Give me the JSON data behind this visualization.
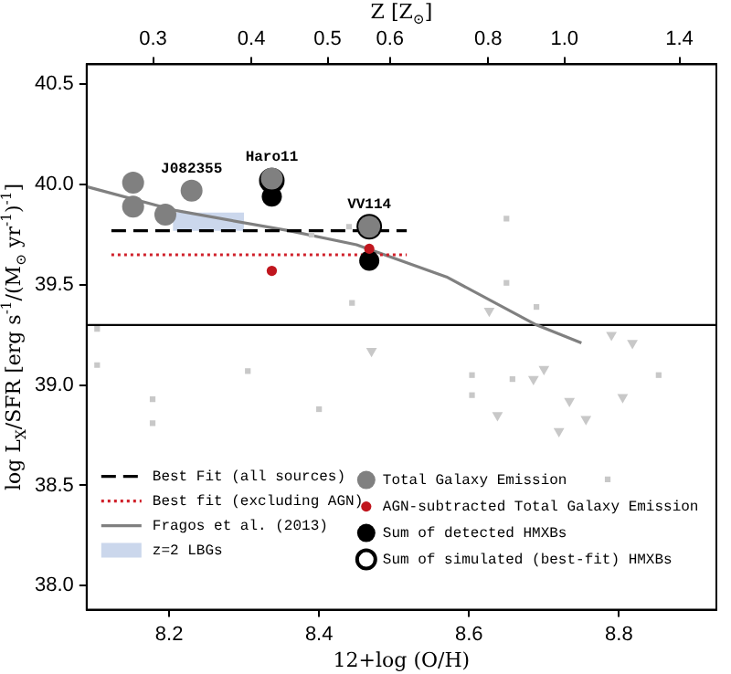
{
  "chart_data": {
    "type": "scatter",
    "xlabel": "12+log (O/H)",
    "ylabel": "log L$_{X}$/SFR [erg s$^{-1}$/(M$_{⊙}$ yr$^{-1}$)$^{-1}$]",
    "x2label": "Z [Z$_{⊙}$]",
    "xlim": [
      8.09,
      8.93
    ],
    "xticks": [
      8.2,
      8.4,
      8.6,
      8.8
    ],
    "ylim": [
      37.88,
      40.6
    ],
    "yticks": [
      {
        "value": 38,
        "label": "38.0"
      },
      {
        "value": 38.5,
        "label": "38.5"
      },
      {
        "value": 39,
        "label": "39.0"
      },
      {
        "value": 39.5,
        "label": "39.5"
      },
      {
        "value": 40,
        "label": "40.0"
      },
      {
        "value": 40.5,
        "label": "40.5"
      }
    ],
    "x2lim": [
      0.247,
      1.56
    ],
    "x2ticks": [
      0.3,
      0.4,
      0.5,
      0.6,
      0.8,
      {
        "value": 1,
        "label": "1.0"
      },
      1.4
    ],
    "log": "x2",
    "grid": false,
    "legend": "bottom",
    "series": [
      {
        "name": "Total Galaxy Emission",
        "color": "#808080",
        "marker": "circle",
        "x": [
          8.152,
          8.152,
          8.195,
          8.23,
          8.337,
          8.467
        ],
        "values": [
          40.01,
          39.89,
          39.85,
          39.97,
          40.03,
          39.79
        ]
      },
      {
        "name": "AGN-subtracted Total Galaxy Emission",
        "color": "#c0161e",
        "marker": "circle",
        "x": [
          8.337,
          8.467
        ],
        "values": [
          39.57,
          39.68
        ]
      },
      {
        "name": "Sum of detected HMXBs",
        "color": "#000000",
        "marker": "circle",
        "x": [
          8.337,
          8.467
        ],
        "values": [
          39.94,
          39.62
        ]
      },
      {
        "name": "Sum of simulated (best-fit) HMXBs",
        "color": "#000000",
        "marker": "circle",
        "x": [
          8.337,
          8.467
        ],
        "values": [
          40.02,
          39.79
        ]
      },
      {
        "color": "#c8c8c8",
        "marker": "square",
        "x": [
          8.104,
          8.104,
          8.178,
          8.178,
          8.305,
          8.4,
          8.39,
          8.44,
          8.444,
          8.604,
          8.604,
          8.65,
          8.65,
          8.658,
          8.69,
          8.785,
          8.853
        ],
        "values": [
          39.28,
          39.1,
          38.93,
          38.81,
          39.07,
          38.88,
          39.75,
          39.79,
          39.41,
          39.05,
          38.95,
          39.83,
          39.51,
          39.03,
          39.39,
          38.53,
          39.05
        ]
      },
      {
        "color": "#c8c8c8",
        "marker": "triangle",
        "x": [
          8.47,
          8.627,
          8.638,
          8.686,
          8.7,
          8.72,
          8.734,
          8.756,
          8.79,
          8.805,
          8.818
        ],
        "values": [
          39.17,
          39.37,
          38.85,
          39.03,
          39.08,
          38.77,
          38.92,
          38.83,
          39.25,
          38.94,
          39.21
        ]
      },
      {
        "name": "Best Fit (all sources)",
        "type": "line",
        "line_style": "dashed",
        "color": "#000000",
        "x": [
          8.123,
          8.517
        ],
        "values": [
          39.77,
          39.77
        ]
      },
      {
        "name": "Best fit (excluding AGN)",
        "type": "line",
        "line_style": "dotted",
        "color": "#d0202a",
        "x": [
          8.123,
          8.517
        ],
        "values": [
          39.65,
          39.65
        ]
      },
      {
        "name": "Fragos et al. (2013)",
        "type": "line",
        "line_style": "solid",
        "color": "#808080",
        "x": [
          8.09,
          8.21,
          8.36,
          8.45,
          8.57,
          8.69,
          8.75
        ],
        "values": [
          39.99,
          39.87,
          39.77,
          39.7,
          39.54,
          39.3,
          39.21
        ]
      },
      {
        "name": "z=2 LBGs",
        "type": "area",
        "color": "#a9bde0",
        "x": [
          8.205,
          8.3
        ],
        "values": [
          null,
          null
        ],
        "lower": [
          39.77,
          39.77
        ],
        "upper": [
          39.86,
          39.86
        ]
      }
    ],
    "ref_lines": [
      {
        "axis": "y",
        "value": 39.3,
        "color": "#000000"
      }
    ],
    "annotations": [
      {
        "text": "J082355",
        "x": 8.23,
        "y": 39.97
      },
      {
        "text": "Haro11",
        "x": 8.337,
        "y": 40.03
      },
      {
        "text": "VV114",
        "x": 8.467,
        "y": 39.79
      }
    ]
  }
}
